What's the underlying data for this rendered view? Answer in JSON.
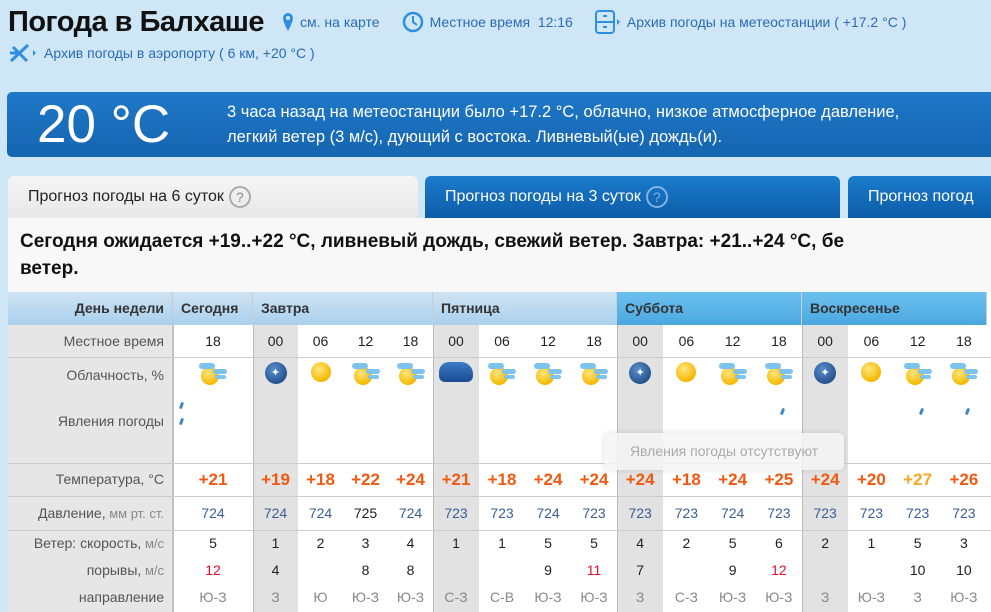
{
  "header": {
    "title": "Погода в Балхаше",
    "map_link": "см. на карте",
    "local_time_label": "Местное время",
    "local_time": "12:16",
    "station_archive": "Архив погоды на метеостанции ( +17.2 °C )",
    "airport_archive": "Архив погоды в аэропорту ( 6 км, +20 °C )"
  },
  "current": {
    "temp": "20 °C",
    "line1": "3 часа назад на метеостанции было +17.2 °C, облачно, низкое атмосферное давление,",
    "line2": "легкий ветер (3 м/с), дующий с востока. Ливневый(ые) дождь(и)."
  },
  "tabs": [
    {
      "label": "Прогноз погоды на 6 суток",
      "help": "?"
    },
    {
      "label": "Прогноз погоды на 3 суток",
      "help": "?"
    },
    {
      "label": "Прогноз погод"
    }
  ],
  "summary": {
    "line1": "Сегодня ожидается +19..+22 °C, ливневый дождь, свежий ветер. Завтра: +21..+24 °C, бе",
    "line2": "ветер."
  },
  "labels": {
    "day": "День недели",
    "time": "Местное время",
    "cloud": "Облачность, %",
    "phen": "Явления погоды",
    "temp": "Температура, °C",
    "press_main": "Давление,",
    "press_unit": " мм рт. ст.",
    "wind_main": "Ветер: скорость,",
    "wind_unit": " м/с",
    "gust_main": "порывы,",
    "gust_unit": " м/с",
    "dir": "направление"
  },
  "tooltip": "Явления погоды отсутствуют",
  "colors": {
    "temp": "#f2580f",
    "temp_hot": "#f5a623",
    "pressure": "#3a5f95",
    "gust_strong": "#e0102a",
    "night_bg": "#e2e2e2"
  },
  "days": [
    {
      "name": "Сегодня",
      "slots": [
        {
          "time": "18",
          "icon": "partly-cloudy",
          "rain": "shower",
          "temp": "+21",
          "press": "724",
          "wind": "5",
          "gust": "12",
          "dir": "Ю-З"
        }
      ]
    },
    {
      "name": "Завтра",
      "slots": [
        {
          "time": "00",
          "icon": "clear-night",
          "rain": "",
          "temp": "+19",
          "press": "724",
          "wind": "1",
          "gust": "4",
          "dir": "З"
        },
        {
          "time": "06",
          "icon": "sun",
          "rain": "",
          "temp": "+18",
          "press": "724",
          "wind": "2",
          "gust": "",
          "dir": "Ю"
        },
        {
          "time": "12",
          "icon": "partly-cloudy",
          "rain": "",
          "temp": "+22",
          "press": "725",
          "wind": "3",
          "gust": "8",
          "dir": "Ю-З"
        },
        {
          "time": "18",
          "icon": "partly-cloudy",
          "rain": "",
          "temp": "+24",
          "press": "724",
          "wind": "4",
          "gust": "8",
          "dir": "Ю-З"
        }
      ]
    },
    {
      "name": "Пятница",
      "slots": [
        {
          "time": "00",
          "icon": "cloudy-night",
          "rain": "",
          "temp": "+21",
          "press": "723",
          "wind": "1",
          "gust": "",
          "dir": "С-З"
        },
        {
          "time": "06",
          "icon": "partly-cloudy",
          "rain": "",
          "temp": "+18",
          "press": "723",
          "wind": "1",
          "gust": "",
          "dir": "С-В"
        },
        {
          "time": "12",
          "icon": "partly-cloudy",
          "rain": "",
          "temp": "+24",
          "press": "724",
          "wind": "5",
          "gust": "9",
          "dir": "Ю-З"
        },
        {
          "time": "18",
          "icon": "partly-cloudy",
          "rain": "",
          "temp": "+24",
          "press": "723",
          "wind": "5",
          "gust": "11",
          "dir": "Ю-З"
        }
      ]
    },
    {
      "name": "Суббота",
      "slots": [
        {
          "time": "00",
          "icon": "clear-night",
          "rain": "",
          "temp": "+24",
          "press": "723",
          "wind": "4",
          "gust": "7",
          "dir": "З"
        },
        {
          "time": "06",
          "icon": "sun",
          "rain": "",
          "temp": "+18",
          "press": "723",
          "wind": "2",
          "gust": "",
          "dir": "С-З"
        },
        {
          "time": "12",
          "icon": "partly-cloudy",
          "rain": "",
          "temp": "+24",
          "press": "724",
          "wind": "5",
          "gust": "9",
          "dir": "Ю-З"
        },
        {
          "time": "18",
          "icon": "partly-cloudy",
          "rain": "light",
          "temp": "+25",
          "press": "723",
          "wind": "6",
          "gust": "12",
          "dir": "Ю-З"
        }
      ]
    },
    {
      "name": "Воскресенье",
      "slots": [
        {
          "time": "00",
          "icon": "clear-night",
          "rain": "",
          "temp": "+24",
          "press": "723",
          "wind": "2",
          "gust": "",
          "dir": "З"
        },
        {
          "time": "06",
          "icon": "sun",
          "rain": "",
          "temp": "+20",
          "press": "723",
          "wind": "1",
          "gust": "",
          "dir": "Ю-З"
        },
        {
          "time": "12",
          "icon": "partly-cloudy",
          "rain": "light",
          "temp": "+27",
          "press": "723",
          "wind": "5",
          "gust": "10",
          "dir": "З"
        },
        {
          "time": "18",
          "icon": "partly-cloudy",
          "rain": "light",
          "temp": "+26",
          "press": "723",
          "wind": "3",
          "gust": "10",
          "dir": "Ю-З"
        }
      ]
    }
  ]
}
